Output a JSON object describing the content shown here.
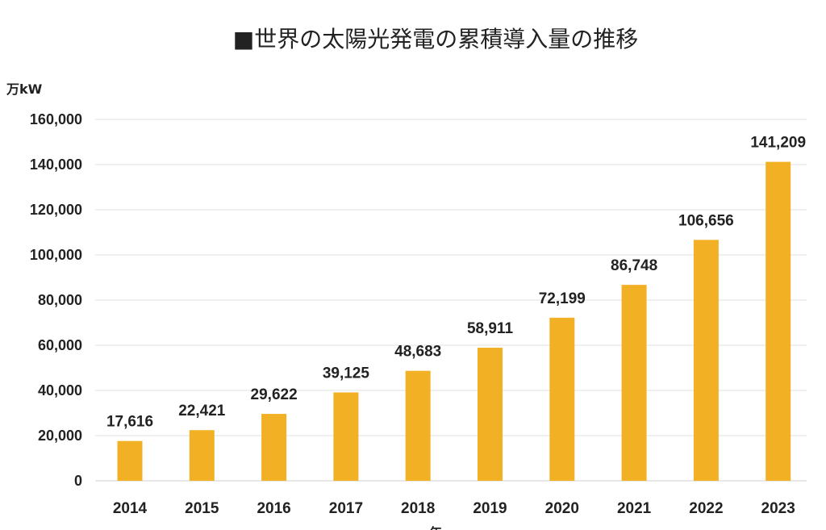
{
  "chart_data": {
    "type": "bar",
    "title": "■世界の太陽光発電の累積導入量の推移",
    "ylabel": "万kW",
    "xlabel": "年",
    "categories": [
      "2014",
      "2015",
      "2016",
      "2017",
      "2018",
      "2019",
      "2020",
      "2021",
      "2022",
      "2023"
    ],
    "values": [
      17616,
      22421,
      29622,
      39125,
      48683,
      58911,
      72199,
      86748,
      106656,
      141209
    ],
    "value_labels": [
      "17,616",
      "22,421",
      "29,622",
      "39,125",
      "48,683",
      "58,911",
      "72,199",
      "86,748",
      "106,656",
      "141,209"
    ],
    "ylim": [
      0,
      160000
    ],
    "yticks": [
      0,
      20000,
      40000,
      60000,
      80000,
      100000,
      120000,
      140000,
      160000
    ],
    "ytick_labels": [
      "0",
      "20,000",
      "40,000",
      "60,000",
      "80,000",
      "100,000",
      "120,000",
      "140,000",
      "160,000"
    ],
    "grid": true,
    "legend": "none",
    "bar_color": "#F2B125",
    "grid_color": "#E1E1E1",
    "text_color": "#222222"
  }
}
